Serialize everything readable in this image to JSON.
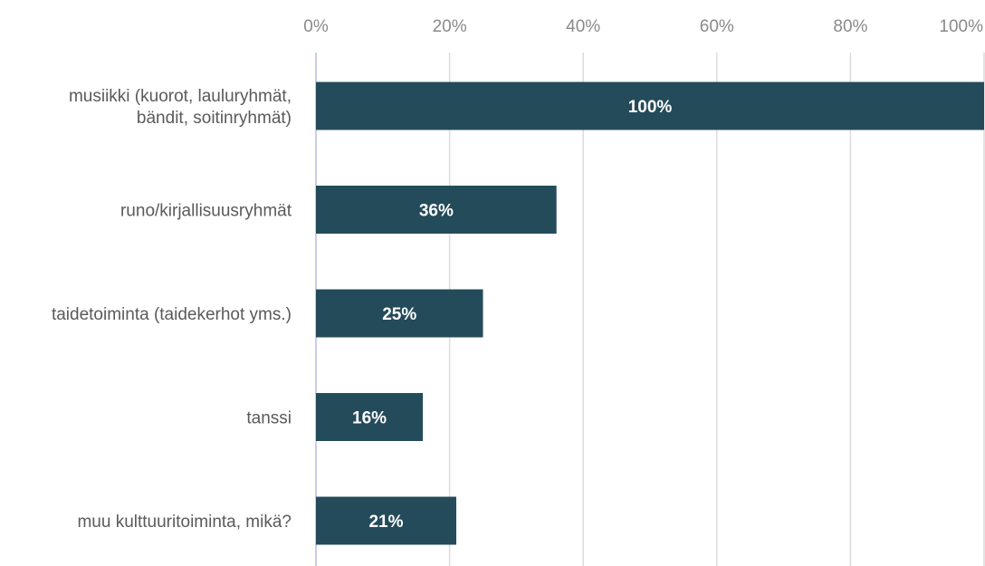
{
  "chart_data": {
    "type": "bar",
    "orientation": "horizontal",
    "categories": [
      [
        "musiikki (kuorot, lauluryhmät,",
        "bändit, soitinryhmät)"
      ],
      [
        "runo/kirjallisuusryhmät"
      ],
      [
        "taidetoiminta (taidekerhot yms.)"
      ],
      [
        "tanssi"
      ],
      [
        "muu kulttuuritoiminta, mikä?"
      ]
    ],
    "values": [
      100,
      36,
      25,
      16,
      21
    ],
    "data_labels": [
      "100%",
      "36%",
      "25%",
      "16%",
      "21%"
    ],
    "xlim": [
      0,
      100
    ],
    "x_ticks": [
      0,
      20,
      40,
      60,
      80,
      100
    ],
    "x_tick_labels": [
      "0%",
      "20%",
      "40%",
      "60%",
      "80%",
      "100%"
    ],
    "x_axis_position": "top",
    "grid": true,
    "legend": "none",
    "title": "",
    "xlabel": "",
    "ylabel": "",
    "colors": {
      "bar": "#244b5a",
      "grid": "#dcdcdc",
      "axis": "#c9cdea",
      "tick_text": "#8a8a8a",
      "category_text": "#5a5a5a",
      "data_label_text": "#ffffff"
    }
  }
}
